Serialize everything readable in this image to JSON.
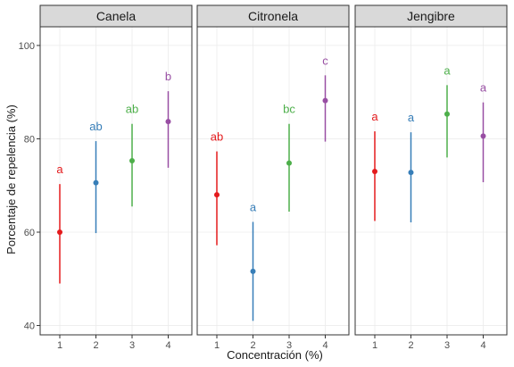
{
  "chart_data": {
    "type": "scatter",
    "subtype": "point-range (mean ± error) faceted",
    "xlabel": "Concentración (%)",
    "ylabel": "Porcentaje de repelencia (%)",
    "x": [
      1,
      2,
      3,
      4
    ],
    "ylim": [
      38,
      104
    ],
    "yticks": [
      40,
      60,
      80,
      100
    ],
    "grid": true,
    "series_colors": [
      "#e41a1c",
      "#377eb8",
      "#4daf4a",
      "#984ea3"
    ],
    "panels": [
      {
        "name": "Canela",
        "points": [
          {
            "x": 1,
            "y": 60.0,
            "low": 49.0,
            "high": 70.3,
            "letter": "a"
          },
          {
            "x": 2,
            "y": 70.6,
            "low": 59.8,
            "high": 79.5,
            "letter": "ab"
          },
          {
            "x": 3,
            "y": 75.3,
            "low": 65.5,
            "high": 83.2,
            "letter": "ab"
          },
          {
            "x": 4,
            "y": 83.7,
            "low": 73.8,
            "high": 90.2,
            "letter": "b"
          }
        ]
      },
      {
        "name": "Citronela",
        "points": [
          {
            "x": 1,
            "y": 68.0,
            "low": 57.2,
            "high": 77.3,
            "letter": "ab"
          },
          {
            "x": 2,
            "y": 51.6,
            "low": 41.0,
            "high": 62.2,
            "letter": "a"
          },
          {
            "x": 3,
            "y": 74.8,
            "low": 64.4,
            "high": 83.2,
            "letter": "bc"
          },
          {
            "x": 4,
            "y": 88.2,
            "low": 79.4,
            "high": 93.6,
            "letter": "c"
          }
        ]
      },
      {
        "name": "Jengibre",
        "points": [
          {
            "x": 1,
            "y": 73.0,
            "low": 62.4,
            "high": 81.6,
            "letter": "a"
          },
          {
            "x": 2,
            "y": 72.8,
            "low": 62.1,
            "high": 81.4,
            "letter": "a"
          },
          {
            "x": 3,
            "y": 85.3,
            "low": 76.0,
            "high": 91.5,
            "letter": "a"
          },
          {
            "x": 4,
            "y": 80.6,
            "low": 70.7,
            "high": 87.8,
            "letter": "a"
          }
        ]
      }
    ]
  }
}
